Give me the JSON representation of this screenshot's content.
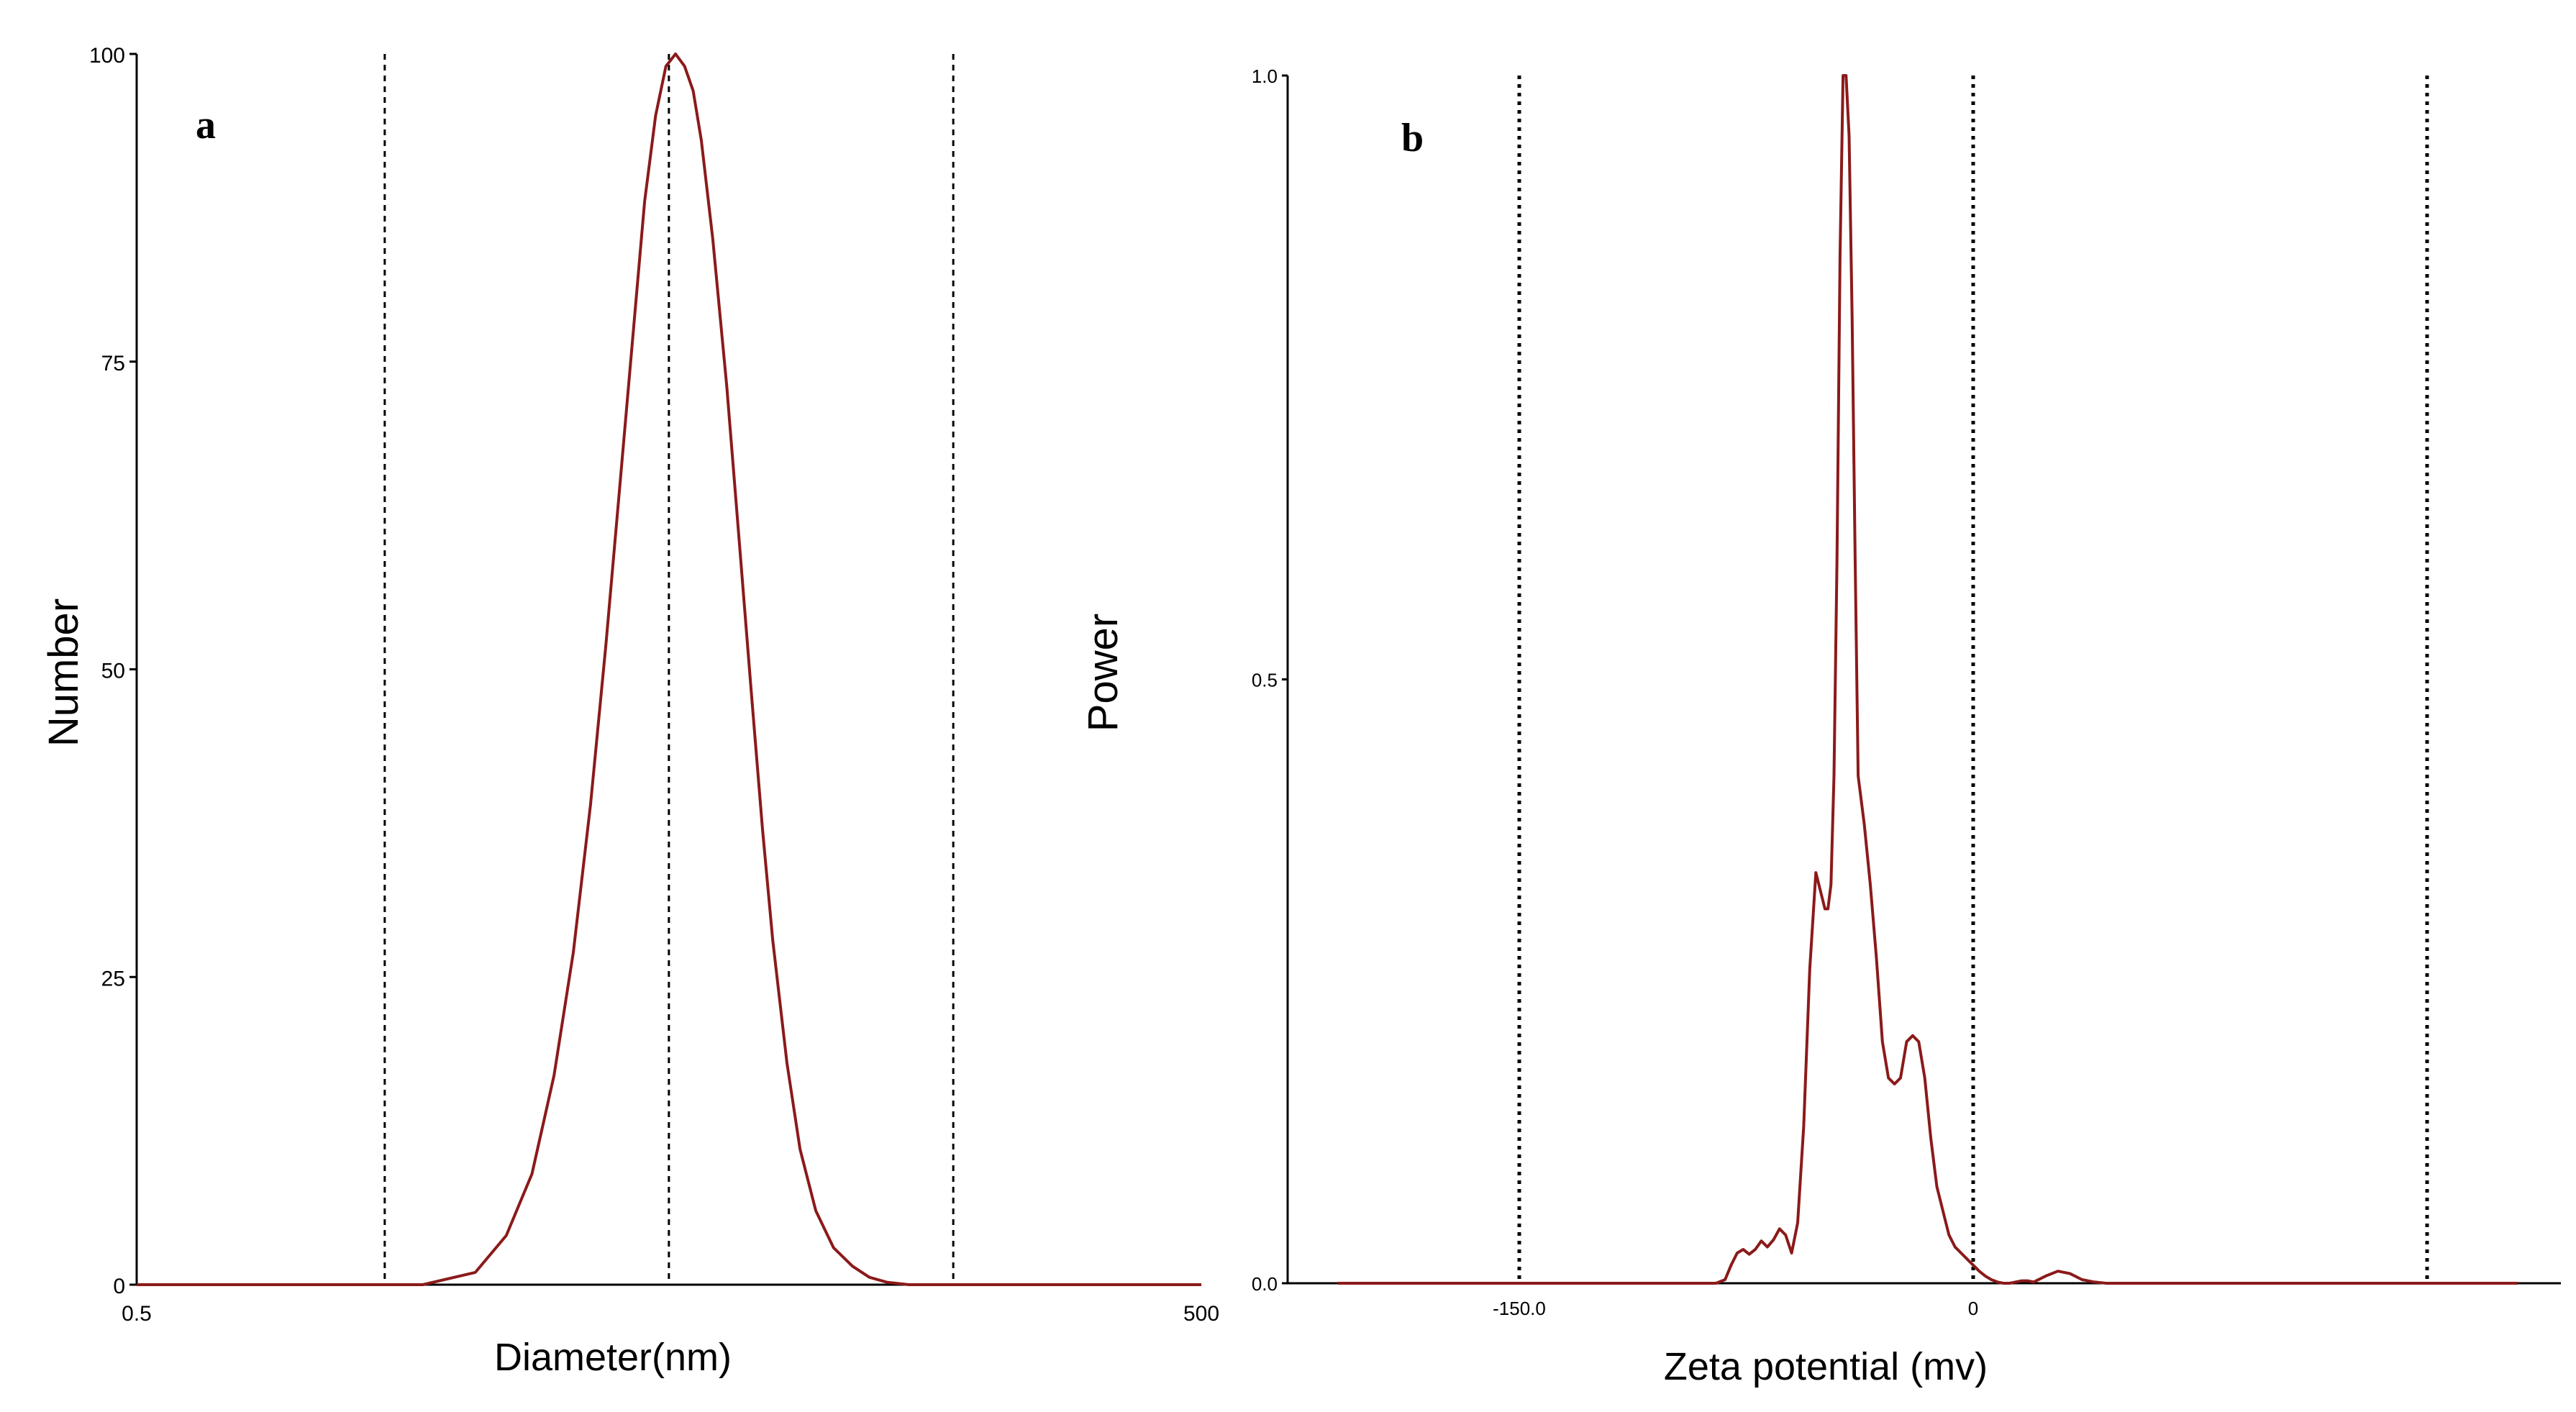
{
  "colors": {
    "curve": "#8b1a1a",
    "axis": "#000000",
    "guide": "#000000"
  },
  "chart_data": [
    {
      "panel_label": "a",
      "type": "line",
      "xlabel": "Diameter(nm)",
      "ylabel": "Number",
      "x_scale": "log",
      "xlim": [
        0.5,
        500
      ],
      "ylim": [
        0,
        100
      ],
      "x_tick_labels": [
        "0.5",
        "500"
      ],
      "y_ticks": [
        0,
        25,
        50,
        75,
        100
      ],
      "y_tick_labels": [
        "0",
        "25",
        "50",
        "75",
        "100"
      ],
      "guide_lines_x": [
        2.5,
        15.8,
        100
      ],
      "series": [
        {
          "x": [
            0.5,
            3.2,
            4.5,
            5.5,
            6.5,
            7.5,
            8.5,
            9.5,
            10.5,
            11.5,
            12.5,
            13.5,
            14.5,
            15.5,
            16.5,
            17.5,
            18.5,
            19.5,
            21,
            23,
            25,
            27,
            29,
            31,
            34,
            37,
            41,
            46,
            52,
            58,
            65,
            75,
            500
          ],
          "y": [
            0,
            0,
            1,
            4,
            9,
            17,
            27,
            39,
            52,
            65,
            77,
            88,
            95,
            99,
            100,
            99,
            97,
            93,
            85,
            73,
            60,
            48,
            37,
            28,
            18,
            11,
            6,
            3,
            1.5,
            0.6,
            0.2,
            0,
            0
          ]
        }
      ]
    },
    {
      "panel_label": "b",
      "type": "line",
      "xlabel": "Zeta potential (mv)",
      "ylabel": "Power",
      "xlim": [
        -150,
        150
      ],
      "ylim": [
        0,
        1
      ],
      "x_tick_labels": [
        "-150.0",
        "0"
      ],
      "x_ticks": [
        -150,
        0
      ],
      "y_ticks": [
        0,
        0.5,
        1
      ],
      "y_tick_labels": [
        "0.0",
        "0.5",
        "1.0"
      ],
      "guide_lines_x": [
        -150,
        0,
        150
      ],
      "series": [
        {
          "x": [
            -210,
            -105,
            -100,
            -95,
            -90,
            -85,
            -82,
            -80,
            -78,
            -76,
            -74,
            -72,
            -70,
            -68,
            -66,
            -64,
            -62,
            -60,
            -58,
            -56,
            -54,
            -52,
            -50,
            -49,
            -48,
            -47,
            -46,
            -45,
            -44,
            -43,
            -42,
            -41,
            -40,
            -39,
            -38,
            -36,
            -34,
            -32,
            -30,
            -28,
            -26,
            -24,
            -22,
            -20,
            -18,
            -16,
            -14,
            -12,
            -10,
            -8,
            -6,
            -4,
            -2,
            0,
            2,
            4,
            6,
            8,
            10,
            12,
            14,
            16,
            18,
            20,
            24,
            28,
            32,
            36,
            40,
            44,
            48,
            60,
            180
          ],
          "y": [
            0,
            0,
            0,
            0,
            0,
            0,
            0.003,
            0.015,
            0.025,
            0.028,
            0.024,
            0.028,
            0.035,
            0.03,
            0.036,
            0.045,
            0.04,
            0.025,
            0.05,
            0.13,
            0.26,
            0.34,
            0.32,
            0.31,
            0.31,
            0.33,
            0.42,
            0.6,
            0.85,
            1.0,
            1.0,
            0.95,
            0.8,
            0.6,
            0.42,
            0.38,
            0.33,
            0.27,
            0.2,
            0.17,
            0.165,
            0.17,
            0.2,
            0.205,
            0.2,
            0.17,
            0.12,
            0.08,
            0.06,
            0.04,
            0.03,
            0.025,
            0.02,
            0.015,
            0.01,
            0.006,
            0.003,
            0.001,
            0,
            0,
            0.001,
            0.002,
            0.002,
            0.001,
            0.006,
            0.01,
            0.008,
            0.003,
            0.001,
            0,
            0,
            0,
            0
          ]
        }
      ]
    }
  ]
}
